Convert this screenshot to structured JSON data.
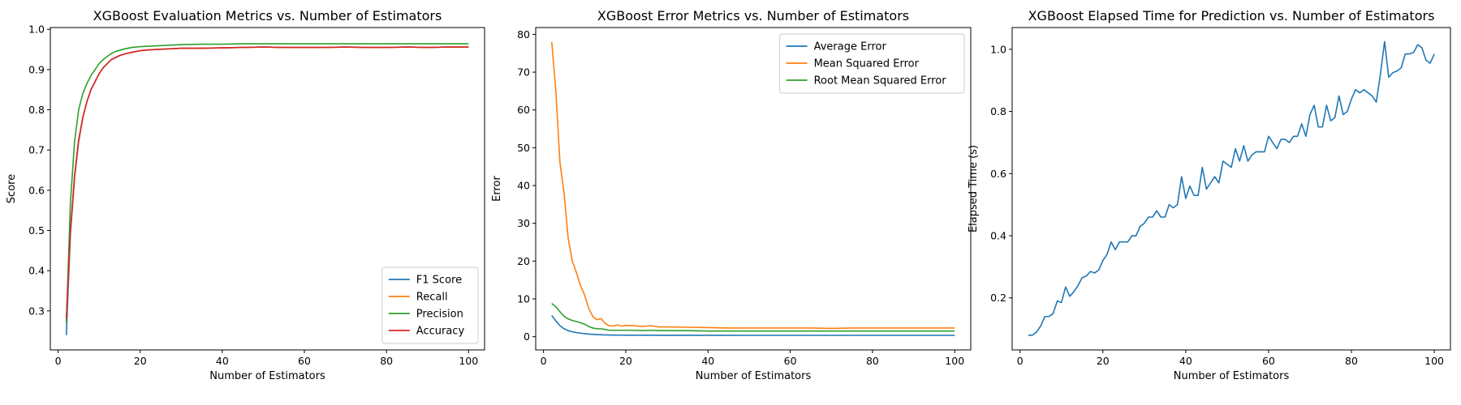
{
  "chart_data": [
    {
      "type": "line",
      "title": "XGBoost Evaluation Metrics vs. Number of Estimators",
      "xlabel": "Number of Estimators",
      "ylabel": "Score",
      "xlim": [
        -1.9,
        103.9
      ],
      "ylim": [
        0.203,
        1.0045
      ],
      "xticks": [
        0,
        20,
        40,
        60,
        80,
        100
      ],
      "yticks": [
        0.3,
        0.4,
        0.5,
        0.6,
        0.7,
        0.8,
        0.9,
        1.0
      ],
      "legend": "lower-right",
      "x": [
        2,
        3,
        4,
        5,
        6,
        7,
        8,
        9,
        10,
        11,
        12,
        13,
        14,
        15,
        16,
        17,
        18,
        19,
        20,
        22,
        24,
        26,
        28,
        30,
        35,
        40,
        45,
        50,
        55,
        60,
        65,
        70,
        75,
        80,
        85,
        90,
        95,
        100
      ],
      "series": [
        {
          "name": "F1 Score",
          "color": "#1f77b4",
          "values": [
            0.24,
            0.49,
            0.63,
            0.72,
            0.78,
            0.82,
            0.85,
            0.87,
            0.89,
            0.905,
            0.915,
            0.925,
            0.93,
            0.935,
            0.938,
            0.941,
            0.943,
            0.945,
            0.947,
            0.949,
            0.95,
            0.951,
            0.952,
            0.953,
            0.953,
            0.954,
            0.955,
            0.956,
            0.955,
            0.955,
            0.955,
            0.956,
            0.955,
            0.955,
            0.956,
            0.955,
            0.956,
            0.956
          ]
        },
        {
          "name": "Recall",
          "color": "#ff7f0e",
          "values": [
            0.27,
            0.5,
            0.635,
            0.725,
            0.78,
            0.82,
            0.85,
            0.87,
            0.89,
            0.905,
            0.915,
            0.925,
            0.93,
            0.935,
            0.938,
            0.941,
            0.943,
            0.945,
            0.947,
            0.949,
            0.95,
            0.951,
            0.952,
            0.953,
            0.953,
            0.954,
            0.955,
            0.956,
            0.955,
            0.955,
            0.955,
            0.956,
            0.955,
            0.955,
            0.956,
            0.955,
            0.956,
            0.956
          ]
        },
        {
          "name": "Precision",
          "color": "#2ca02c",
          "values": [
            0.27,
            0.57,
            0.72,
            0.8,
            0.84,
            0.865,
            0.885,
            0.9,
            0.915,
            0.925,
            0.933,
            0.94,
            0.945,
            0.948,
            0.951,
            0.953,
            0.955,
            0.956,
            0.957,
            0.958,
            0.959,
            0.96,
            0.961,
            0.962,
            0.963,
            0.963,
            0.964,
            0.964,
            0.964,
            0.964,
            0.964,
            0.964,
            0.964,
            0.964,
            0.964,
            0.964,
            0.964,
            0.964
          ]
        },
        {
          "name": "Accuracy",
          "color": "#d62728",
          "values": [
            0.28,
            0.5,
            0.635,
            0.725,
            0.78,
            0.82,
            0.85,
            0.87,
            0.89,
            0.905,
            0.915,
            0.925,
            0.93,
            0.935,
            0.938,
            0.941,
            0.943,
            0.945,
            0.947,
            0.949,
            0.95,
            0.951,
            0.952,
            0.953,
            0.953,
            0.954,
            0.955,
            0.956,
            0.955,
            0.955,
            0.955,
            0.956,
            0.955,
            0.955,
            0.956,
            0.955,
            0.956,
            0.956
          ]
        }
      ]
    },
    {
      "type": "line",
      "title": "XGBoost Error Metrics vs. Number of Estimators",
      "xlabel": "Number of Estimators",
      "ylabel": "Error",
      "xlim": [
        -1.9,
        103.9
      ],
      "ylim": [
        -3.5,
        81.8
      ],
      "xticks": [
        0,
        20,
        40,
        60,
        80,
        100
      ],
      "yticks": [
        0,
        10,
        20,
        30,
        40,
        50,
        60,
        70,
        80
      ],
      "legend": "upper-right",
      "x": [
        2,
        3,
        4,
        5,
        6,
        7,
        8,
        9,
        10,
        11,
        12,
        13,
        14,
        15,
        16,
        17,
        18,
        19,
        20,
        22,
        24,
        26,
        28,
        30,
        35,
        40,
        45,
        50,
        55,
        60,
        65,
        70,
        75,
        80,
        85,
        90,
        95,
        100
      ],
      "series": [
        {
          "name": "Average Error",
          "color": "#1f77b4",
          "values": [
            5.6,
            4.2,
            2.9,
            2.1,
            1.6,
            1.3,
            1.1,
            0.95,
            0.8,
            0.7,
            0.62,
            0.55,
            0.5,
            0.47,
            0.45,
            0.43,
            0.42,
            0.41,
            0.4,
            0.4,
            0.39,
            0.39,
            0.38,
            0.38,
            0.37,
            0.37,
            0.37,
            0.36,
            0.36,
            0.36,
            0.36,
            0.36,
            0.36,
            0.36,
            0.36,
            0.36,
            0.36,
            0.36
          ]
        },
        {
          "name": "Mean Squared Error",
          "color": "#ff7f0e",
          "values": [
            78,
            65,
            46,
            38,
            26,
            20,
            17,
            13.5,
            11,
            7.5,
            5.3,
            4.5,
            4.8,
            3.5,
            2.9,
            2.8,
            3.1,
            2.8,
            3.0,
            2.9,
            2.7,
            2.9,
            2.6,
            2.6,
            2.5,
            2.4,
            2.3,
            2.3,
            2.3,
            2.3,
            2.3,
            2.2,
            2.3,
            2.3,
            2.3,
            2.3,
            2.3,
            2.3
          ]
        },
        {
          "name": "Root Mean Squared Error",
          "color": "#2ca02c",
          "values": [
            8.8,
            7.9,
            6.6,
            5.4,
            4.7,
            4.3,
            4.0,
            3.7,
            3.3,
            2.7,
            2.3,
            2.1,
            2.1,
            1.9,
            1.7,
            1.7,
            1.7,
            1.7,
            1.7,
            1.7,
            1.6,
            1.7,
            1.6,
            1.6,
            1.6,
            1.5,
            1.5,
            1.5,
            1.5,
            1.5,
            1.5,
            1.5,
            1.5,
            1.5,
            1.5,
            1.5,
            1.5,
            1.5
          ]
        }
      ]
    },
    {
      "type": "line",
      "title": "XGBoost Elapsed Time for Prediction vs. Number of Estimators",
      "xlabel": "Number of Estimators",
      "ylabel": "Elapsed Time (s)",
      "xlim": [
        -1.9,
        103.9
      ],
      "ylim": [
        0.0325,
        1.07
      ],
      "xticks": [
        0,
        20,
        40,
        60,
        80,
        100
      ],
      "yticks": [
        0.2,
        0.4,
        0.6,
        0.8,
        1.0
      ],
      "legend": "none",
      "x": [
        2,
        3,
        4,
        5,
        6,
        7,
        8,
        9,
        10,
        11,
        12,
        13,
        14,
        15,
        16,
        17,
        18,
        19,
        20,
        21,
        22,
        23,
        24,
        25,
        26,
        27,
        28,
        29,
        30,
        31,
        32,
        33,
        34,
        35,
        36,
        37,
        38,
        39,
        40,
        41,
        42,
        43,
        44,
        45,
        46,
        47,
        48,
        49,
        50,
        51,
        52,
        53,
        54,
        55,
        56,
        57,
        58,
        59,
        60,
        61,
        62,
        63,
        64,
        65,
        66,
        67,
        68,
        69,
        70,
        71,
        72,
        73,
        74,
        75,
        76,
        77,
        78,
        79,
        80,
        81,
        82,
        83,
        84,
        85,
        86,
        87,
        88,
        89,
        90,
        91,
        92,
        93,
        94,
        95,
        96,
        97,
        98,
        99,
        100
      ],
      "series": [
        {
          "name": "Elapsed Time",
          "color": "#1f77b4",
          "values": [
            0.08,
            0.08,
            0.09,
            0.11,
            0.14,
            0.14,
            0.15,
            0.19,
            0.185,
            0.235,
            0.205,
            0.22,
            0.24,
            0.265,
            0.27,
            0.285,
            0.28,
            0.29,
            0.32,
            0.34,
            0.38,
            0.355,
            0.38,
            0.38,
            0.38,
            0.4,
            0.4,
            0.43,
            0.44,
            0.46,
            0.46,
            0.48,
            0.46,
            0.46,
            0.5,
            0.49,
            0.5,
            0.59,
            0.52,
            0.56,
            0.53,
            0.53,
            0.62,
            0.55,
            0.57,
            0.59,
            0.57,
            0.64,
            0.63,
            0.62,
            0.68,
            0.64,
            0.69,
            0.64,
            0.66,
            0.67,
            0.67,
            0.67,
            0.72,
            0.7,
            0.68,
            0.71,
            0.71,
            0.7,
            0.72,
            0.72,
            0.76,
            0.72,
            0.79,
            0.82,
            0.75,
            0.75,
            0.82,
            0.77,
            0.78,
            0.85,
            0.79,
            0.8,
            0.84,
            0.87,
            0.86,
            0.87,
            0.86,
            0.85,
            0.83,
            0.92,
            1.025,
            0.91,
            0.925,
            0.93,
            0.94,
            0.985,
            0.985,
            0.99,
            1.015,
            1.005,
            0.965,
            0.955,
            0.985
          ]
        }
      ]
    }
  ]
}
